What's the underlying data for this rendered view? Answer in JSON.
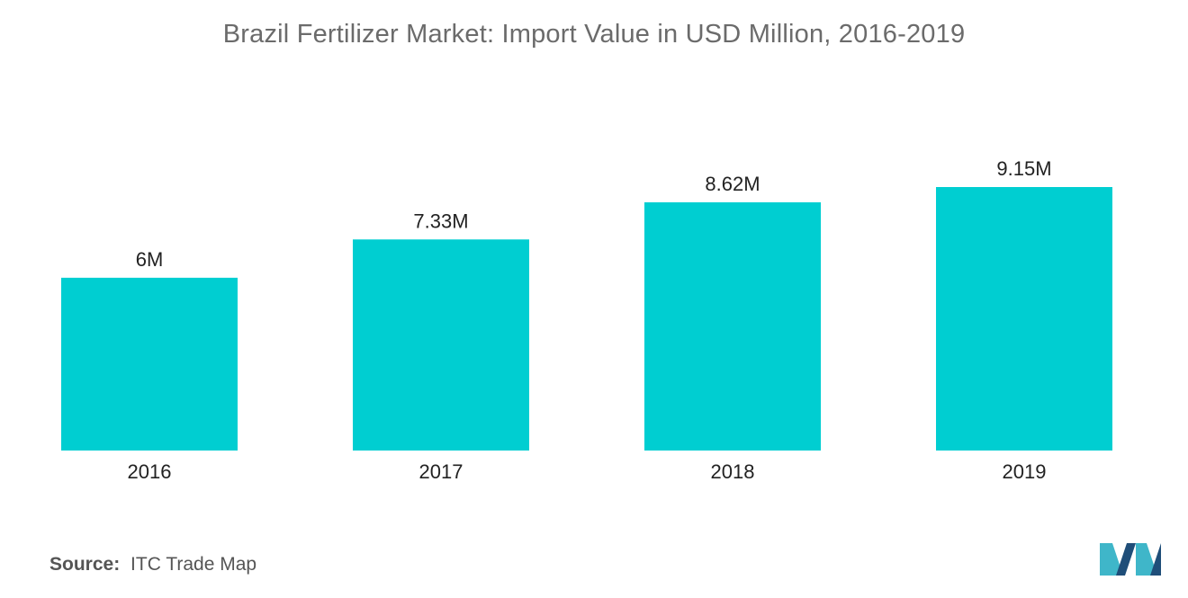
{
  "colors": {
    "bar": "#00CED1",
    "logo_dark": "#1f4e79",
    "logo_light": "#3fb6c9"
  },
  "chart_data": {
    "type": "bar",
    "title": "Brazil Fertilizer Market: Import Value in USD Million, 2016-2019",
    "categories": [
      "2016",
      "2017",
      "2018",
      "2019"
    ],
    "values": [
      6,
      7.33,
      8.62,
      9.15
    ],
    "data_labels": [
      "6M",
      "7.33M",
      "8.62M",
      "9.15M"
    ],
    "xlabel": "",
    "ylabel": "",
    "ylim": [
      0,
      9.15
    ],
    "grid": false,
    "legend": "none"
  },
  "source": {
    "label": "Source:",
    "text": "ITC Trade Map"
  },
  "logo": {
    "icon": "mordor-intelligence-logo-icon"
  }
}
